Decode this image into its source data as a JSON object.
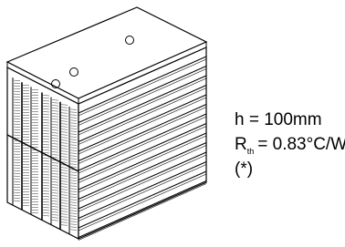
{
  "specs": {
    "height": "h = 100mm",
    "resistance_symbol": "R",
    "resistance_subscript": "th",
    "resistance_value": "= 0.83°C/W",
    "note": "(*)"
  }
}
